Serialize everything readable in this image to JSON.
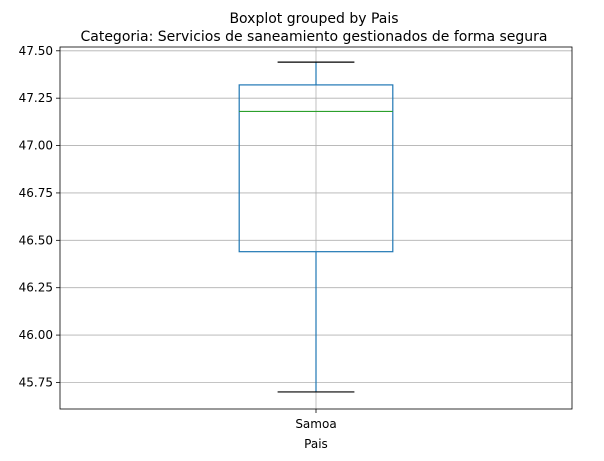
{
  "chart_data": {
    "type": "boxplot",
    "suptitle": "Boxplot grouped by Pais",
    "title": "Categoria: Servicios de saneamiento gestionados de forma segura",
    "xlabel": "Pais",
    "ylabel": "",
    "categories": [
      "Samoa"
    ],
    "boxes": [
      {
        "category": "Samoa",
        "whisker_low": 45.7,
        "q1": 46.44,
        "median": 47.18,
        "q3": 47.32,
        "whisker_high": 47.44
      }
    ],
    "ylim": [
      45.61,
      47.52
    ],
    "yticks": [
      "45.75",
      "46.00",
      "46.25",
      "46.50",
      "46.75",
      "47.00",
      "47.25",
      "47.50"
    ],
    "ytick_values": [
      45.75,
      46.0,
      46.25,
      46.5,
      46.75,
      47.0,
      47.25,
      47.5
    ],
    "grid": true,
    "colors": {
      "box": "#1f77b4",
      "median": "#2ca02c",
      "whisker": "#1f77b4",
      "cap": "#000000",
      "grid": "#b0b0b0"
    }
  }
}
